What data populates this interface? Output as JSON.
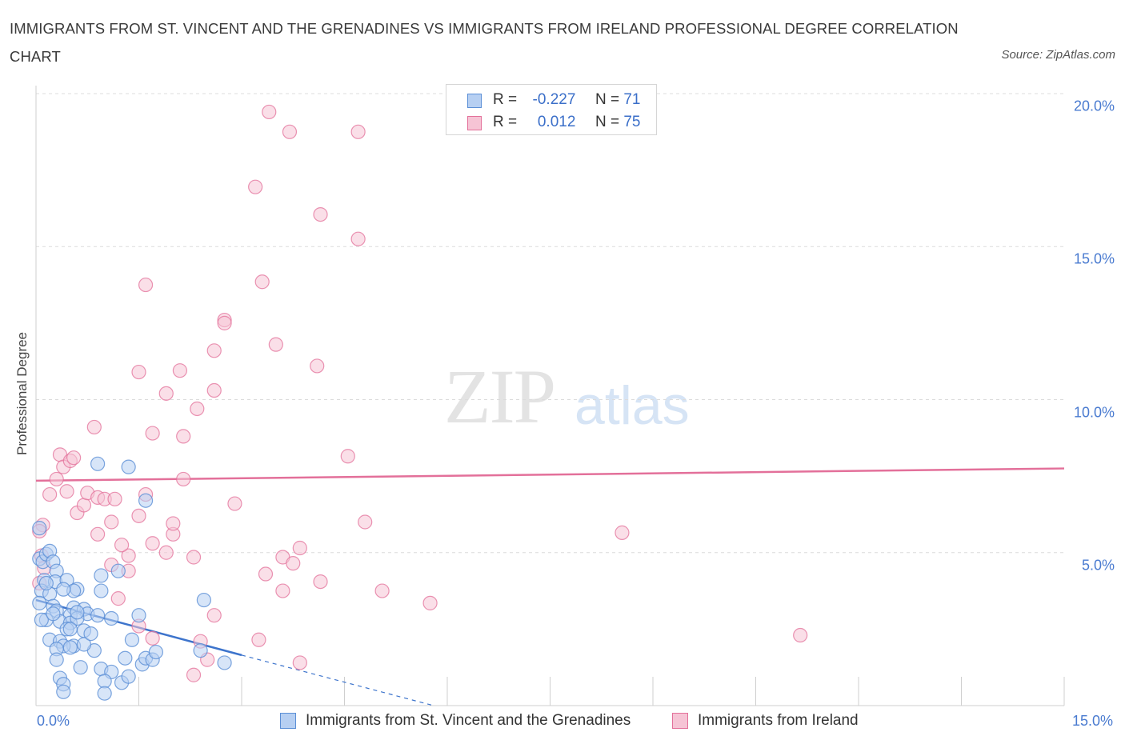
{
  "title": "IMMIGRANTS FROM ST. VINCENT AND THE GRENADINES VS IMMIGRANTS FROM IRELAND PROFESSIONAL DEGREE CORRELATION CHART",
  "source": "Source: ZipAtlas.com",
  "watermark": {
    "zip": "ZIP",
    "atlas": "atlas"
  },
  "legend": {
    "series1": {
      "r_label": "R =",
      "r_value": "-0.227",
      "n_label": "N =",
      "n_value": "71"
    },
    "series2": {
      "r_label": "R =",
      "r_value": "0.012",
      "n_label": "N =",
      "n_value": "75"
    }
  },
  "colors": {
    "blue": "#5b8fd6",
    "blue_fill": "#b6cff2",
    "pink": "#e3709a",
    "pink_fill": "#f6c4d5",
    "tick_label": "#4a7bd0"
  },
  "chart_data": {
    "type": "scatter",
    "xlabel": "",
    "ylabel": "Professional Degree",
    "xlim": [
      0,
      15
    ],
    "ylim": [
      0,
      20
    ],
    "x_tick_labels": [
      "0.0%",
      "15.0%"
    ],
    "y_ticks": [
      {
        "value": 5,
        "label": "5.0%"
      },
      {
        "value": 10,
        "label": "10.0%"
      },
      {
        "value": 15,
        "label": "15.0%"
      },
      {
        "value": 20,
        "label": "20.0%"
      }
    ],
    "grid": "horizontal dashed",
    "series": [
      {
        "name": "Immigrants from St. Vincent and the Grenadines",
        "color": "blue",
        "trend": {
          "x0": 0,
          "y0": 3.45,
          "x1": 3.0,
          "y1": 1.65,
          "dash_to_x": 5.8,
          "dash_to_y": 0.0
        },
        "points": [
          [
            0.05,
            5.8
          ],
          [
            0.05,
            4.8
          ],
          [
            0.1,
            4.7
          ],
          [
            0.15,
            4.95
          ],
          [
            0.2,
            5.05
          ],
          [
            0.25,
            4.7
          ],
          [
            0.3,
            4.4
          ],
          [
            0.12,
            4.1
          ],
          [
            0.28,
            4.05
          ],
          [
            0.45,
            4.1
          ],
          [
            0.6,
            3.8
          ],
          [
            0.55,
            3.75
          ],
          [
            0.4,
            3.8
          ],
          [
            0.08,
            3.75
          ],
          [
            0.2,
            3.65
          ],
          [
            0.05,
            3.35
          ],
          [
            0.25,
            3.25
          ],
          [
            0.3,
            3.1
          ],
          [
            0.55,
            3.2
          ],
          [
            0.7,
            3.15
          ],
          [
            0.5,
            2.95
          ],
          [
            0.75,
            3.0
          ],
          [
            0.9,
            2.95
          ],
          [
            0.15,
            2.8
          ],
          [
            0.35,
            2.75
          ],
          [
            0.5,
            2.7
          ],
          [
            0.6,
            2.85
          ],
          [
            0.45,
            2.5
          ],
          [
            0.7,
            2.45
          ],
          [
            0.2,
            2.15
          ],
          [
            0.35,
            2.1
          ],
          [
            0.55,
            1.95
          ],
          [
            0.4,
            1.95
          ],
          [
            0.3,
            1.85
          ],
          [
            0.85,
            1.8
          ],
          [
            0.5,
            1.9
          ],
          [
            0.3,
            1.5
          ],
          [
            0.65,
            1.25
          ],
          [
            0.95,
            1.2
          ],
          [
            1.1,
            1.1
          ],
          [
            0.35,
            0.9
          ],
          [
            0.4,
            0.7
          ],
          [
            1.0,
            0.8
          ],
          [
            1.25,
            0.75
          ],
          [
            1.35,
            0.95
          ],
          [
            0.4,
            0.45
          ],
          [
            1.0,
            0.4
          ],
          [
            1.3,
            1.55
          ],
          [
            1.55,
            1.35
          ],
          [
            1.6,
            1.55
          ],
          [
            1.7,
            1.5
          ],
          [
            1.75,
            1.75
          ],
          [
            1.4,
            2.15
          ],
          [
            1.5,
            2.95
          ],
          [
            1.1,
            2.85
          ],
          [
            0.95,
            3.75
          ],
          [
            0.95,
            4.25
          ],
          [
            1.2,
            4.4
          ],
          [
            1.6,
            6.7
          ],
          [
            0.9,
            7.9
          ],
          [
            1.35,
            7.8
          ],
          [
            2.45,
            3.45
          ],
          [
            2.4,
            1.8
          ],
          [
            2.75,
            1.4
          ],
          [
            0.08,
            2.8
          ],
          [
            0.5,
            2.5
          ],
          [
            0.25,
            3.0
          ],
          [
            0.15,
            4.0
          ],
          [
            0.6,
            3.05
          ],
          [
            0.7,
            2.0
          ],
          [
            0.8,
            2.35
          ]
        ]
      },
      {
        "name": "Immigrants from Ireland",
        "color": "pink",
        "trend": {
          "x0": 0,
          "y0": 7.35,
          "x1": 15,
          "y1": 7.75
        },
        "points": [
          [
            0.1,
            5.9
          ],
          [
            0.05,
            5.7
          ],
          [
            0.08,
            4.9
          ],
          [
            0.12,
            4.5
          ],
          [
            0.05,
            4.0
          ],
          [
            0.2,
            6.9
          ],
          [
            0.3,
            7.4
          ],
          [
            0.45,
            7.0
          ],
          [
            0.35,
            8.2
          ],
          [
            0.4,
            7.8
          ],
          [
            0.5,
            8.0
          ],
          [
            0.55,
            8.1
          ],
          [
            0.6,
            6.3
          ],
          [
            0.7,
            6.55
          ],
          [
            0.75,
            6.95
          ],
          [
            0.9,
            6.8
          ],
          [
            1.0,
            6.75
          ],
          [
            1.15,
            6.75
          ],
          [
            0.9,
            5.6
          ],
          [
            1.1,
            4.6
          ],
          [
            1.35,
            4.9
          ],
          [
            1.1,
            6.0
          ],
          [
            1.25,
            5.25
          ],
          [
            1.35,
            4.4
          ],
          [
            1.2,
            3.5
          ],
          [
            1.5,
            6.2
          ],
          [
            1.6,
            6.9
          ],
          [
            1.7,
            5.3
          ],
          [
            1.5,
            2.6
          ],
          [
            1.7,
            2.2
          ],
          [
            1.9,
            5.0
          ],
          [
            2.0,
            5.6
          ],
          [
            2.0,
            5.95
          ],
          [
            2.15,
            7.4
          ],
          [
            2.3,
            4.85
          ],
          [
            2.4,
            2.1
          ],
          [
            2.5,
            1.5
          ],
          [
            2.3,
            1.0
          ],
          [
            2.6,
            2.95
          ],
          [
            1.7,
            8.9
          ],
          [
            2.15,
            8.8
          ],
          [
            2.35,
            9.7
          ],
          [
            0.85,
            9.1
          ],
          [
            1.5,
            10.9
          ],
          [
            1.9,
            10.2
          ],
          [
            2.1,
            10.95
          ],
          [
            2.6,
            10.3
          ],
          [
            2.6,
            11.6
          ],
          [
            2.75,
            12.6
          ],
          [
            2.75,
            12.5
          ],
          [
            1.6,
            13.75
          ],
          [
            3.3,
            13.85
          ],
          [
            3.2,
            16.95
          ],
          [
            3.5,
            11.8
          ],
          [
            3.4,
            19.4
          ],
          [
            3.7,
            18.75
          ],
          [
            2.9,
            6.6
          ],
          [
            3.25,
            2.15
          ],
          [
            3.35,
            4.3
          ],
          [
            3.6,
            4.85
          ],
          [
            3.75,
            4.65
          ],
          [
            3.85,
            5.15
          ],
          [
            3.6,
            3.75
          ],
          [
            3.85,
            1.4
          ],
          [
            4.1,
            11.1
          ],
          [
            4.15,
            16.05
          ],
          [
            4.15,
            4.05
          ],
          [
            4.55,
            8.15
          ],
          [
            4.7,
            15.25
          ],
          [
            4.7,
            18.75
          ],
          [
            4.8,
            6.0
          ],
          [
            5.05,
            3.75
          ],
          [
            5.75,
            3.35
          ],
          [
            8.55,
            5.65
          ],
          [
            11.15,
            2.3
          ]
        ]
      }
    ]
  }
}
